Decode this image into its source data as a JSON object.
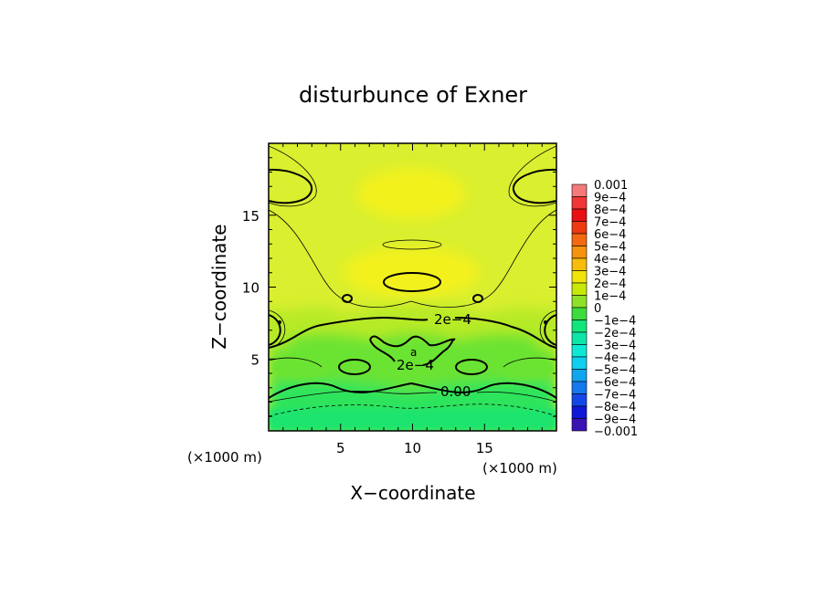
{
  "chart_data": {
    "type": "heatmap",
    "title": "disturbunce of Exner",
    "xlabel": "X−coordinate",
    "ylabel": "Z−coordinate",
    "x_unit": "(×1000 m)",
    "y_unit": "(×1000 m)",
    "xlim": [
      0,
      20
    ],
    "ylim": [
      0,
      20
    ],
    "x_ticks": [
      5,
      10,
      15
    ],
    "y_ticks": [
      5,
      10,
      15
    ],
    "x_tick_labels": [
      "5",
      "10",
      "15"
    ],
    "y_tick_labels": [
      "5",
      "10",
      "15"
    ],
    "colorbar": {
      "labels": [
        "0.001",
        "9e−4",
        "8e−4",
        "7e−4",
        "6e−4",
        "5e−4",
        "4e−4",
        "3e−4",
        "2e−4",
        "1e−4",
        "0",
        "−1e−4",
        "−2e−4",
        "−3e−4",
        "−4e−4",
        "−5e−4",
        "−6e−4",
        "−7e−4",
        "−8e−4",
        "−9e−4",
        "−0.001"
      ],
      "colors": [
        "#f47a7a",
        "#f03636",
        "#e81010",
        "#ee3a10",
        "#f26a10",
        "#f5920f",
        "#f7bc0c",
        "#f0e40a",
        "#c8e80a",
        "#8ee028",
        "#3cdc3c",
        "#12e67a",
        "#0ee6a8",
        "#10e8d6",
        "#10cfee",
        "#10a6ee",
        "#1478ee",
        "#1448e6",
        "#0f18d6",
        "#3a14b4",
        "#5a1a9a"
      ]
    },
    "contour_labels": [
      "2e−4",
      "2e−4",
      "0.00",
      "a"
    ],
    "fill_colors": {
      "upper": "#d9ef2f",
      "bright": "#f3f11c",
      "mid": "#b7ea26",
      "green": "#6ae331",
      "lower": "#2fe45c",
      "deep": "#1fe46e"
    }
  }
}
